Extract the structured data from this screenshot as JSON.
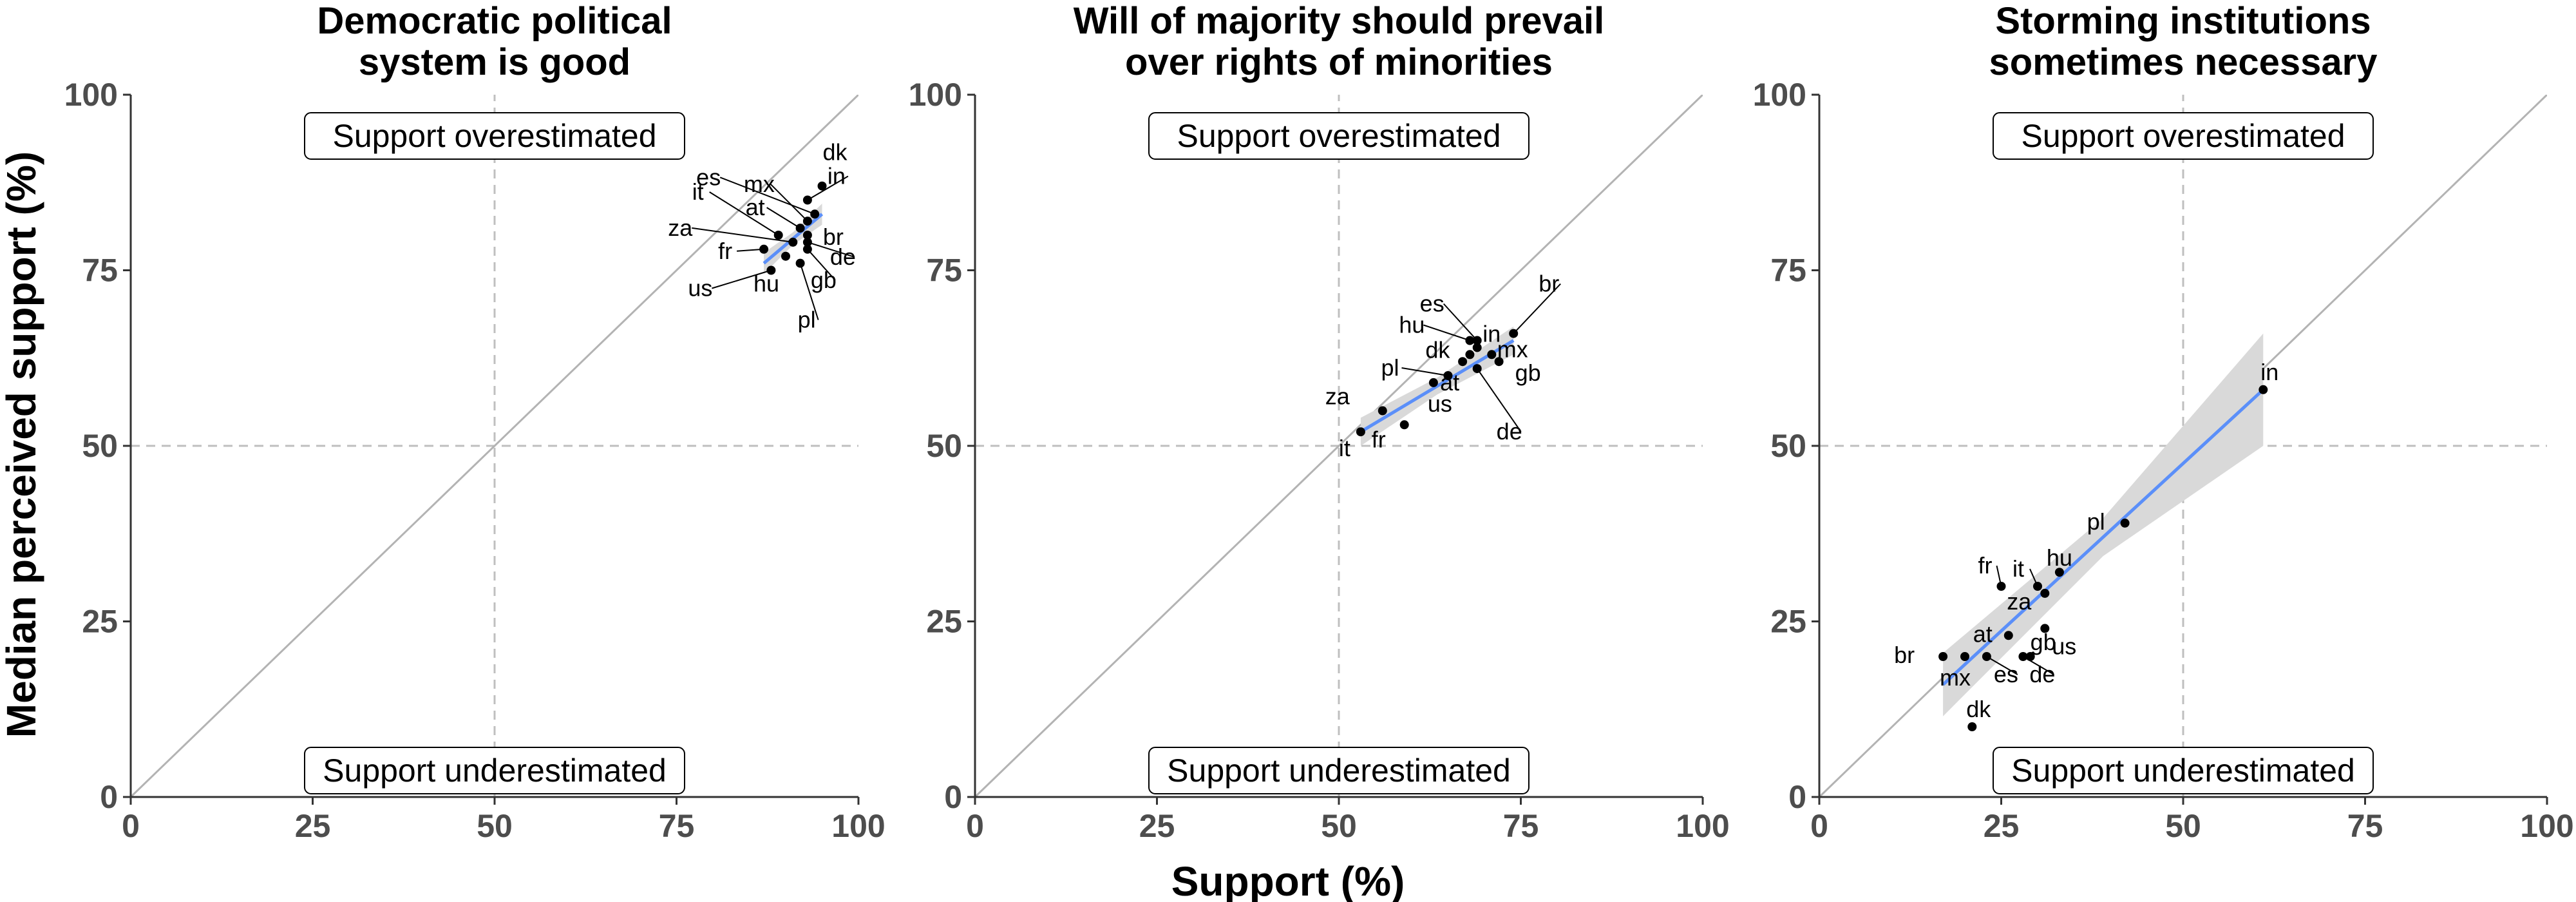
{
  "axes": {
    "xlabel": "Support (%)",
    "ylabel": "Median perceived support (%)"
  },
  "annotations": {
    "over": "Support overestimated",
    "under": "Support underestimated"
  },
  "colors": {
    "points": "#000000",
    "fit_line": "#5b8ff9",
    "ribbon": "#d9d9d9",
    "diagonal": "#b3b3b3",
    "reference": "#bfbfbf"
  },
  "chart_data": [
    {
      "type": "scatter",
      "title": "Democratic political system is good",
      "title_lines": [
        "Democratic political",
        "system is good"
      ],
      "xlim": [
        0,
        100
      ],
      "ylim": [
        0,
        100
      ],
      "ticks": [
        0,
        25,
        50,
        75,
        100
      ],
      "grid": false,
      "reference_lines": {
        "x": 50,
        "y": 50,
        "diagonal": true
      },
      "fit": {
        "x": [
          87,
          95
        ],
        "y": [
          76,
          83
        ],
        "ci": 1.5
      },
      "points": [
        {
          "label": "dk",
          "x": 95,
          "y": 87
        },
        {
          "label": "in",
          "x": 93,
          "y": 85
        },
        {
          "label": "es",
          "x": 94,
          "y": 83
        },
        {
          "label": "mx",
          "x": 93,
          "y": 82
        },
        {
          "label": "br",
          "x": 93,
          "y": 80
        },
        {
          "label": "at",
          "x": 92,
          "y": 81
        },
        {
          "label": "it",
          "x": 89,
          "y": 80
        },
        {
          "label": "de",
          "x": 93,
          "y": 79
        },
        {
          "label": "za",
          "x": 91,
          "y": 79
        },
        {
          "label": "gb",
          "x": 93,
          "y": 78
        },
        {
          "label": "fr",
          "x": 87,
          "y": 78
        },
        {
          "label": "pl",
          "x": 92,
          "y": 76
        },
        {
          "label": "hu",
          "x": 90,
          "y": 77
        },
        {
          "label": "us",
          "x": 88,
          "y": 75
        }
      ]
    },
    {
      "type": "scatter",
      "title": "Will of majority should prevail over rights of minorities",
      "title_lines": [
        "Will of majority should prevail",
        "over rights of minorities"
      ],
      "xlim": [
        0,
        100
      ],
      "ylim": [
        0,
        100
      ],
      "ticks": [
        0,
        25,
        50,
        75,
        100
      ],
      "grid": false,
      "reference_lines": {
        "x": 50,
        "y": 50,
        "diagonal": true
      },
      "fit": {
        "x": [
          53,
          74
        ],
        "y": [
          52,
          65
        ],
        "ci": 2
      },
      "points": [
        {
          "label": "br",
          "x": 74,
          "y": 66
        },
        {
          "label": "in",
          "x": 71,
          "y": 63
        },
        {
          "label": "es",
          "x": 69,
          "y": 65
        },
        {
          "label": "hu",
          "x": 68,
          "y": 65
        },
        {
          "label": "mx",
          "x": 69,
          "y": 64
        },
        {
          "label": "dk",
          "x": 68,
          "y": 63
        },
        {
          "label": "gb",
          "x": 72,
          "y": 62
        },
        {
          "label": "at",
          "x": 67,
          "y": 62
        },
        {
          "label": "de",
          "x": 69,
          "y": 61
        },
        {
          "label": "pl",
          "x": 65,
          "y": 60
        },
        {
          "label": "us",
          "x": 63,
          "y": 59
        },
        {
          "label": "za",
          "x": 56,
          "y": 55
        },
        {
          "label": "fr",
          "x": 59,
          "y": 53
        },
        {
          "label": "it",
          "x": 53,
          "y": 52
        }
      ]
    },
    {
      "type": "scatter",
      "title": "Storming institutions sometimes necessary",
      "title_lines": [
        "Storming institutions",
        "sometimes necessary"
      ],
      "xlim": [
        0,
        100
      ],
      "ylim": [
        0,
        100
      ],
      "ticks": [
        0,
        25,
        50,
        75,
        100
      ],
      "grid": false,
      "reference_lines": {
        "x": 50,
        "y": 50,
        "diagonal": true
      },
      "fit": {
        "x": [
          17,
          61
        ],
        "y": [
          16,
          58
        ],
        "ci_low": [
          -4.5,
          -8
        ],
        "ci_high": [
          4.5,
          8
        ]
      },
      "points": [
        {
          "label": "in",
          "x": 61,
          "y": 58
        },
        {
          "label": "pl",
          "x": 42,
          "y": 39
        },
        {
          "label": "hu",
          "x": 33,
          "y": 32
        },
        {
          "label": "it",
          "x": 30,
          "y": 30
        },
        {
          "label": "fr",
          "x": 25,
          "y": 30
        },
        {
          "label": "za",
          "x": 31,
          "y": 29
        },
        {
          "label": "us",
          "x": 31,
          "y": 24
        },
        {
          "label": "at",
          "x": 26,
          "y": 23
        },
        {
          "label": "gb",
          "x": 29,
          "y": 20
        },
        {
          "label": "de",
          "x": 28,
          "y": 20
        },
        {
          "label": "es",
          "x": 23,
          "y": 20
        },
        {
          "label": "br",
          "x": 17,
          "y": 20
        },
        {
          "label": "mx",
          "x": 20,
          "y": 20
        },
        {
          "label": "dk",
          "x": 21,
          "y": 10
        }
      ]
    }
  ]
}
